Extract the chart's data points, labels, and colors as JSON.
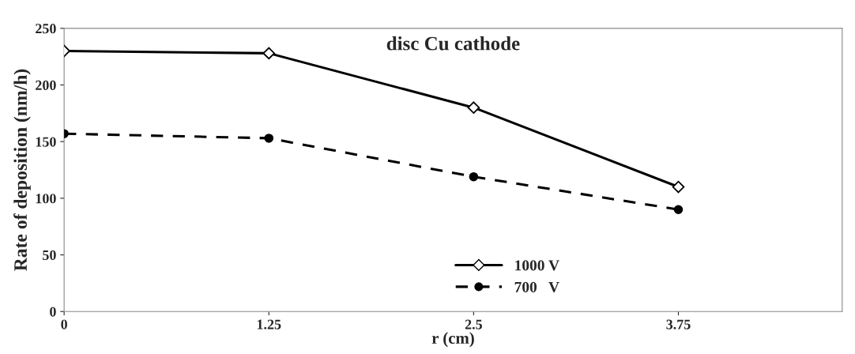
{
  "chart_data": {
    "type": "line",
    "title": "disc Cu cathode",
    "xlabel": "r (cm)",
    "ylabel": "Rate of deposition (nm/h)",
    "x": [
      0,
      1.25,
      2.5,
      3.75
    ],
    "series": [
      {
        "name": "1000 V",
        "color": "#000000",
        "values": [
          230,
          228,
          180,
          110
        ],
        "marker": "diamond",
        "line_style": "solid"
      },
      {
        "name": "700   V",
        "color": "#000000",
        "values": [
          157,
          153,
          119,
          90
        ],
        "marker": "circle",
        "line_style": "dashed"
      }
    ],
    "xlim": [
      0,
      4.75
    ],
    "xticks": [
      0,
      1.25,
      2.5,
      3.75
    ],
    "ylim": [
      0,
      250
    ],
    "yticks": [
      0,
      50,
      100,
      150,
      200,
      250
    ],
    "legend": "bottom",
    "grid": false
  }
}
